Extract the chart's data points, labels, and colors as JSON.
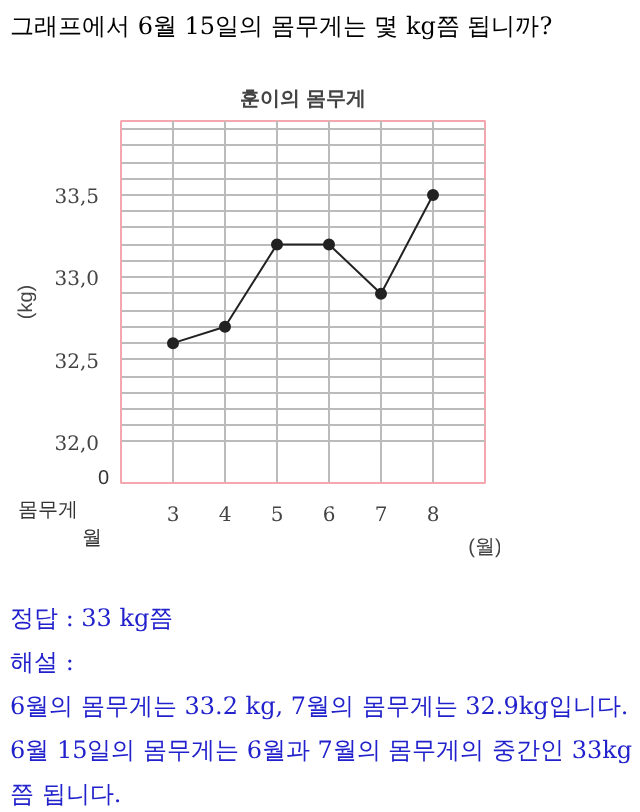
{
  "chart_data": {
    "type": "line",
    "title": "그래프에서 6월 15일의 몸무게는 몇 kg쯤 됩니까?",
    "subtitle": "훈이의 몸무게",
    "ylabel": "(kg)",
    "xlabel": "(월)",
    "x": [
      3,
      4,
      5,
      6,
      7,
      8
    ],
    "series": [
      {
        "color": "#222222",
        "values": [
          32.6,
          32.7,
          33.2,
          33.2,
          32.9,
          33.5
        ]
      }
    ],
    "xlim": [
      2,
      9
    ],
    "xticks": [
      3,
      4,
      5,
      6,
      7,
      8
    ],
    "ylim": [
      31.75,
      33.95
    ],
    "yticks": [
      {
        "value": 32.0,
        "label": "32,0"
      },
      {
        "value": 32.1,
        "label": null
      },
      {
        "value": 32.2,
        "label": null
      },
      {
        "value": 32.3,
        "label": null
      },
      {
        "value": 32.4,
        "label": null
      },
      {
        "value": 32.5,
        "label": "32,5"
      },
      {
        "value": 32.6,
        "label": null
      },
      {
        "value": 32.7,
        "label": null
      },
      {
        "value": 32.8,
        "label": null
      },
      {
        "value": 32.9,
        "label": null
      },
      {
        "value": 33.0,
        "label": "33,0"
      },
      {
        "value": 33.1,
        "label": null
      },
      {
        "value": 33.2,
        "label": null
      },
      {
        "value": 33.3,
        "label": null
      },
      {
        "value": 33.4,
        "label": null
      },
      {
        "value": 33.5,
        "label": "33,5"
      },
      {
        "value": 33.6,
        "label": null
      },
      {
        "value": 33.7,
        "label": null
      },
      {
        "value": 33.8,
        "label": null
      },
      {
        "value": 33.9,
        "label": null
      }
    ],
    "grid": true,
    "marker": "circle",
    "line_style": "solid",
    "annotations": [
      "0",
      "몸무게",
      "월",
      "정답 : 33 kg쯤",
      "해설 :",
      "6월의 몸무게는 33.2 kg, 7월의 몸무게는 32.9kg입니다. 6월 15일의 몸무게는 6월과 7월의 몸무게의 중간인 33kg쯤 됩니다."
    ]
  }
}
